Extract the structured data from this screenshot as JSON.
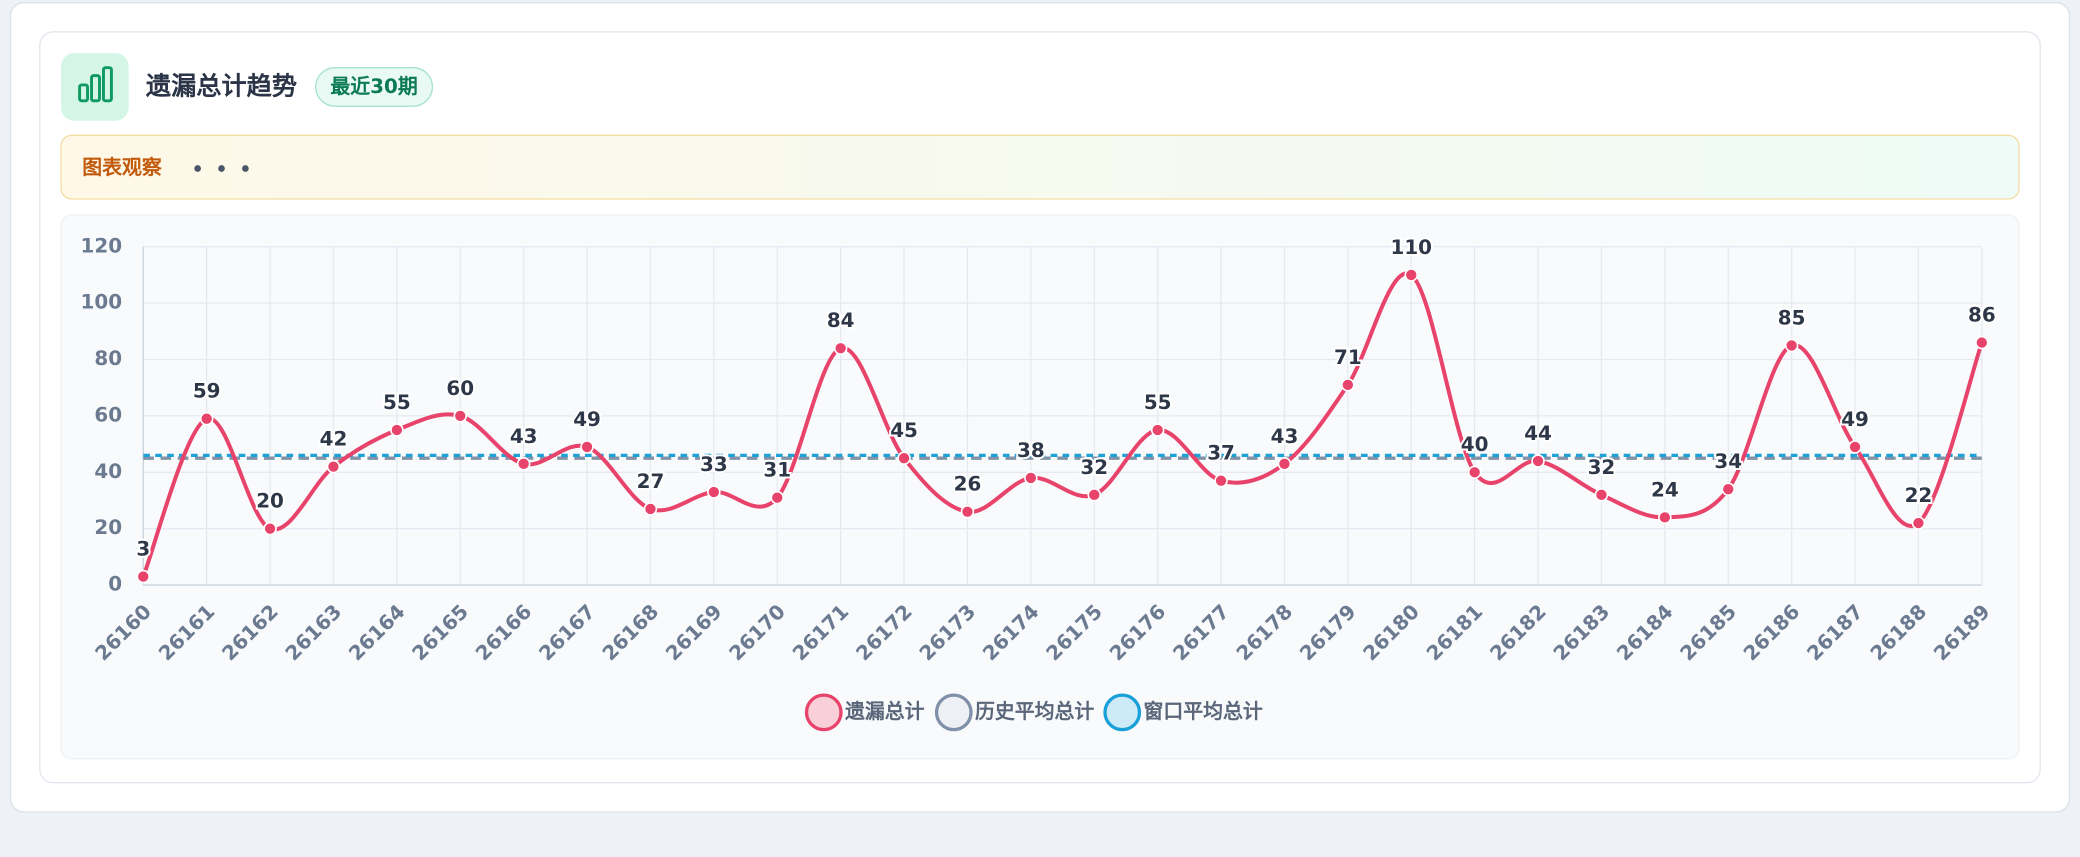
{
  "header": {
    "title": "遗漏总计趋势",
    "badge": "最近30期"
  },
  "observation": {
    "label": "图表观察"
  },
  "chart_data": {
    "type": "line",
    "categories": [
      "26160",
      "26161",
      "26162",
      "26163",
      "26164",
      "26165",
      "26166",
      "26167",
      "26168",
      "26169",
      "26170",
      "26171",
      "26172",
      "26173",
      "26174",
      "26175",
      "26176",
      "26177",
      "26178",
      "26179",
      "26180",
      "26181",
      "26182",
      "26183",
      "26184",
      "26185",
      "26186",
      "26187",
      "26188",
      "26189"
    ],
    "series": [
      {
        "name": "遗漏总计",
        "color": "#e8436a",
        "values": [
          3,
          59,
          20,
          42,
          55,
          60,
          43,
          49,
          27,
          33,
          31,
          84,
          45,
          26,
          38,
          32,
          55,
          37,
          43,
          71,
          110,
          40,
          44,
          32,
          24,
          34,
          85,
          49,
          22,
          86
        ]
      },
      {
        "name": "历史平均总计",
        "color": "#8492a6",
        "value": 45
      },
      {
        "name": "窗口平均总计",
        "color": "#1da1d6",
        "value": 46
      }
    ],
    "ylim": [
      0,
      120
    ],
    "yticks": [
      0,
      20,
      40,
      60,
      80,
      100,
      120
    ],
    "grid": true
  }
}
